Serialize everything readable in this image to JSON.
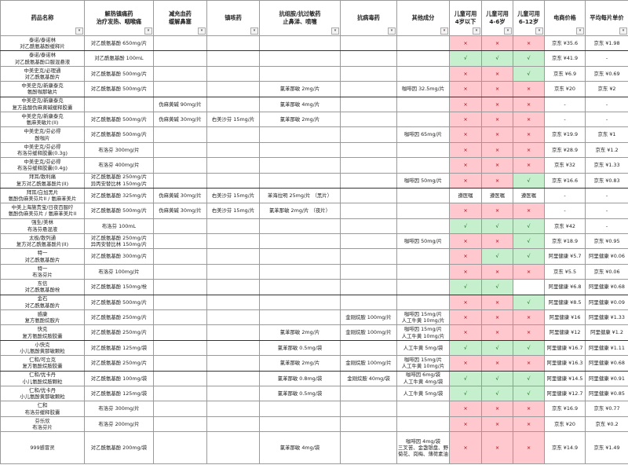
{
  "headers": [
    "药品名称",
    "解热镇痛药\n治疗发热、咽喉痛",
    "减充血药\n缓解鼻塞",
    "镇咳药",
    "抗组胺/抗过敏药\n止鼻涕、喷嚏",
    "抗病毒药",
    "其他成分",
    "儿童可用\n4岁以下",
    "儿童可用\n4-6岁",
    "儿童可用\n6-12岁",
    "电商价格",
    "平均每片单价"
  ],
  "filter_icon": "dropdown-arrow-icon",
  "colors": {
    "no_bg": "#ffc7ce",
    "yes_bg": "#c6efce"
  },
  "rows": [
    [
      "泰诺/泰诺林\n对乙酰氨基酚缓释片",
      "对乙酰氨基酚 650mg/片",
      "",
      "",
      "",
      "",
      "",
      "×",
      "×",
      "×",
      "京东 ¥35.6",
      "京东 ¥1.98"
    ],
    [
      "泰诺/泰诺林\n对乙酰氨基酚口服混悬液",
      "对乙酰氨基酚 100mL",
      "",
      "",
      "",
      "",
      "",
      "√",
      "√",
      "√",
      "京东 ¥41.9",
      "-"
    ],
    [
      "中美史克/必理通\n对乙酰氨基酚片",
      "对乙酰氨基酚 500mg/片",
      "",
      "",
      "",
      "",
      "",
      "×",
      "×",
      "√",
      "京东 ¥6.9",
      "京东 ¥0.69"
    ],
    [
      "中美史克/新康泰克\n氨酚咖那敏片",
      "对乙酰氨基酚 500mg/片",
      "",
      "",
      "氯苯那敏 2mg/片",
      "",
      "咖啡因 32.5mg/片",
      "×",
      "×",
      "×",
      "京东 ¥20",
      "京东 ¥2"
    ],
    [
      "中美史克/新康泰克\n复方盐酸伪麻黄碱缓释胶囊",
      "",
      "伪麻黄碱 90mg/片",
      "",
      "氯苯那敏 4mg/片",
      "",
      "",
      "×",
      "×",
      "×",
      "-",
      "-"
    ],
    [
      "中美史克/新康泰克\n氨麻美敏片(II)",
      "对乙酰氨基酚 500mg/片",
      "伪麻黄碱 30mg/片",
      "右美沙芬 15mg/片",
      "氯苯那敏 2mg/片",
      "",
      "",
      "×",
      "×",
      "×",
      "-",
      "-"
    ],
    [
      "中美史克/芬必得\n酚咖片",
      "对乙酰氨基酚 500mg/片",
      "",
      "",
      "",
      "",
      "咖啡因 65mg/片",
      "×",
      "×",
      "×",
      "京东 ¥19.9",
      "京东 ¥1"
    ],
    [
      "中美史克/芬必得\n布洛芬缓释胶囊(0.3g)",
      "布洛芬 300mg/片",
      "",
      "",
      "",
      "",
      "",
      "×",
      "×",
      "×",
      "京东 ¥28.9",
      "京东 ¥1.2"
    ],
    [
      "中美史克/芬必得\n布洛芬缓释胶囊(0.4g)",
      "布洛芬 400mg/片",
      "",
      "",
      "",
      "",
      "",
      "×",
      "×",
      "×",
      "京东 ¥32",
      "京东 ¥1.33"
    ],
    [
      "拜耳/散利痛\n复方对乙酰氨基酚片(II)",
      "对乙酰氨基酚 250mg/片\n异丙安替比林 150mg/片",
      "",
      "",
      "",
      "",
      "咖啡因 50mg/片",
      "×",
      "×",
      "√",
      "京东 ¥16.6",
      "京东 ¥0.83"
    ],
    [
      "拜耳/白加黑片\n氨酚伪麻美芬片II / 氨麻苯美片",
      "对乙酰氨基酚 325mg/片",
      "伪麻黄碱 30mg/片",
      "右美沙芬 15mg/片",
      "苯海拉明 25mg/片 （黑片）",
      "",
      "",
      "遵医嘱",
      "遵医嘱",
      "遵医嘱",
      "-",
      "-"
    ],
    [
      "中美上海施贵宝/日夜百服咛\n氨酚伪麻美芬片 / 氨麻苯美片II",
      "对乙酰氨基酚 500mg/片",
      "伪麻黄碱 30mg/片",
      "右美沙芬 15mg/片",
      "氯苯那敏 2mg/片 （夜片）",
      "",
      "",
      "×",
      "×",
      "×",
      "-",
      "-"
    ],
    [
      "强生/美林\n布洛芬悬混液",
      "布洛芬 100mL",
      "",
      "",
      "",
      "",
      "",
      "√",
      "√",
      "√",
      "京东 ¥42",
      "-"
    ],
    [
      "太极/散列通\n复方对乙酰氨基酚片(II)",
      "对乙酰氨基酚 250mg/片\n异丙安替比林 150mg/片",
      "",
      "",
      "",
      "",
      "咖啡因 50mg/片",
      "×",
      "×",
      "√",
      "京东 ¥18.9",
      "京东 ¥0.95"
    ],
    [
      "特一\n对乙酰氨基酚片",
      "对乙酰氨基酚 300mg/片",
      "",
      "",
      "",
      "",
      "",
      "×",
      "√",
      "√",
      "阿里健康 ¥5.7",
      "阿里健康 ¥0.06"
    ],
    [
      "特一\n布洛芬片",
      "布洛芬 100mg/片",
      "",
      "",
      "",
      "",
      "",
      "×",
      "×",
      "×",
      "京东 ¥5.5",
      "京东 ¥0.06"
    ],
    [
      "东信\n对乙酰氨基酚栓",
      "对乙酰氨基酚 150mg/栓",
      "",
      "",
      "",
      "",
      "",
      "√",
      "√",
      "",
      "阿里健康 ¥6.8",
      "阿里健康 ¥0.68"
    ],
    [
      "金石\n对乙酰氨基酚片",
      "对乙酰氨基酚 500mg/片",
      "",
      "",
      "",
      "",
      "",
      "×",
      "×",
      "√",
      "阿里健康 ¥8.5",
      "阿里健康 ¥0.09"
    ],
    [
      "感康\n复方氨酚烷胺片",
      "对乙酰氨基酚 250mg/片",
      "",
      "",
      "",
      "金刚烷胺 100mg/片",
      "咖啡因 15mg/片\n人工牛黄 10mg/片",
      "×",
      "×",
      "×",
      "阿里健康 ¥16",
      "阿里健康 ¥1.33"
    ],
    [
      "快克\n复方氨酚烷胺胶囊",
      "对乙酰氨基酚 250mg/片",
      "",
      "",
      "氯苯那敏 2mg/片",
      "金刚烷胺 100mg/片",
      "咖啡因 15mg/片\n人工牛黄 10mg/片",
      "×",
      "×",
      "×",
      "阿里健康 ¥12",
      "阿里健康 ¥1.2"
    ],
    [
      "小快克\n小儿氨酚黄那敏颗粒",
      "对乙酰氨基酚 125mg/袋",
      "",
      "",
      "氯苯那敏 0.5mg/袋",
      "",
      "人工牛黄 5mg/袋",
      "√",
      "√",
      "√",
      "阿里健康 ¥16.7",
      "阿里健康 ¥1.11"
    ],
    [
      "仁和/可立克\n复方氨酚烷胺胶囊",
      "对乙酰氨基酚 250mg/片",
      "",
      "",
      "氯苯那敏 2mg/片",
      "金刚烷胺 100mg/片",
      "咖啡因 15mg/片\n人工牛黄 10mg/片",
      "×",
      "×",
      "×",
      "阿里健康 ¥16.3",
      "阿里健康 ¥0.68"
    ],
    [
      "仁和/优卡丹\n小儿氨酚烷胺颗粒",
      "对乙酰氨基酚 100mg/袋",
      "",
      "",
      "氯苯那敏 0.8mg/袋",
      "金刚烷胺 40mg/袋",
      "咖啡因 6mg/袋\n人工牛黄 4mg/袋",
      "√",
      "√",
      "√",
      "阿里健康 ¥14.5",
      "阿里健康 ¥0.91"
    ],
    [
      "仁和/优卡丹\n小儿氨酚黄那敏颗粒",
      "对乙酰氨基酚 125mg/袋",
      "",
      "",
      "氯苯那敏 0.5mg/袋",
      "",
      "人工牛黄 5mg/袋",
      "√",
      "√",
      "√",
      "阿里健康 ¥12.7",
      "阿里健康 ¥0.85"
    ],
    [
      "仁和\n布洛芬缓释胶囊",
      "布洛芬 300mg/片",
      "",
      "",
      "",
      "",
      "",
      "×",
      "×",
      "×",
      "京东 ¥16.9",
      "京东 ¥0.77"
    ],
    [
      "芬乐欣\n布洛芬片",
      "布洛芬 200mg/片",
      "",
      "",
      "",
      "",
      "",
      "×",
      "×",
      "×",
      "京东 ¥20",
      "京东 ¥0.2"
    ],
    [
      "999感冒灵",
      "对乙酰氨基酚 200mg/袋",
      "",
      "",
      "氯苯那敏 4mg/袋",
      "",
      "咖啡因 4mg/袋\n三叉苦、金盏银盘、野菊花、岗梅、薄荷素油",
      "×",
      "×",
      "×",
      "京东 ¥14.9",
      "京东 ¥1.49"
    ]
  ]
}
